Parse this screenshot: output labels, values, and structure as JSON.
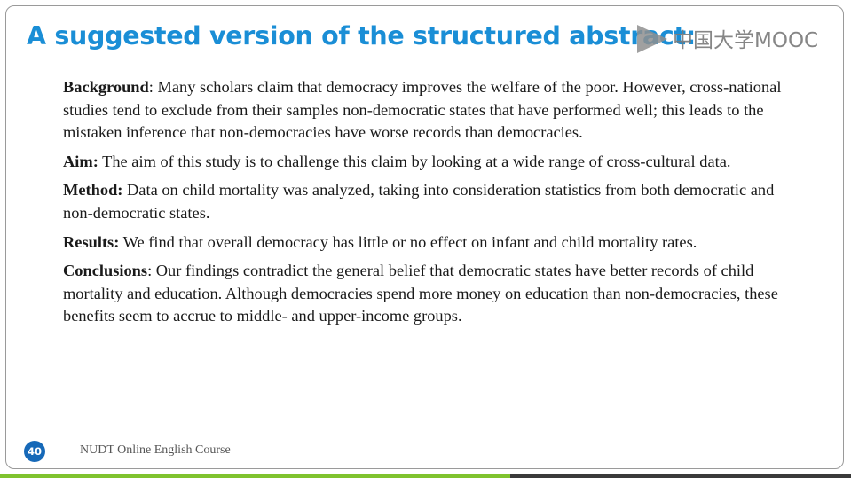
{
  "slide": {
    "title": "A suggested version of the structured abstract:",
    "watermark": {
      "text": "中国大学MOOC",
      "icon": "play-icon"
    },
    "paragraphs": [
      {
        "label": "Background",
        "sep": ": ",
        "text": "Many scholars claim that democracy improves the welfare of the poor. However, cross-national studies tend to exclude from their samples non-democratic states that have performed well; this leads to the mistaken inference that non-democracies have worse records than democracies."
      },
      {
        "label": "Aim:",
        "sep": " ",
        "text": "The aim of this study is to challenge this claim by looking at a wide range of cross-cultural data."
      },
      {
        "label": "Method:",
        "sep": " ",
        "text": "Data on child mortality was analyzed, taking into consideration statistics from both democratic and non-democratic states."
      },
      {
        "label": "Results:",
        "sep": " ",
        "text": "We find that overall democracy has little or no effect on infant and child mortality rates."
      },
      {
        "label": "Conclusions",
        "sep": ": ",
        "text": "Our findings contradict the general belief that democratic states have better records of child mortality and education. Although democracies spend more money on education than non-democracies, these benefits seem to accrue to middle- and upper-income groups."
      }
    ],
    "page_number": "40",
    "footer": "NUDT Online English Course"
  },
  "colors": {
    "title": "#1a8ed6",
    "badge": "#1669b8",
    "progress": "#7fc32e"
  },
  "video_progress": 0.6
}
